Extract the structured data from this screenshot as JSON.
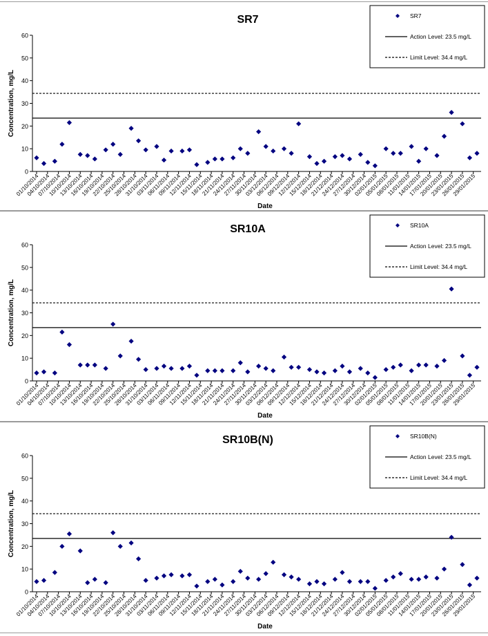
{
  "chart_data": [
    {
      "type": "scatter",
      "title": "SR7",
      "xlabel": "Date",
      "ylabel": "Concentration, mg/L",
      "ylim": [
        0,
        60
      ],
      "yticks": [
        "0",
        "10",
        "20",
        "30",
        "40",
        "50",
        "60"
      ],
      "grid": false,
      "legend_position": "top-right",
      "tick_dates": [
        "01/10/2014",
        "04/10/2014",
        "07/10/2014",
        "10/10/2014",
        "13/10/2014",
        "16/10/2014",
        "19/10/2014",
        "22/10/2014",
        "25/10/2014",
        "28/10/2014",
        "31/10/2014",
        "03/11/2014",
        "06/11/2014",
        "09/11/2014",
        "12/11/2014",
        "15/11/2014",
        "18/11/2014",
        "21/11/2014",
        "24/11/2014",
        "27/11/2014",
        "30/11/2014",
        "03/12/2014",
        "06/12/2014",
        "09/12/2014",
        "12/12/2014",
        "15/12/2014",
        "18/12/2014",
        "21/12/2014",
        "24/12/2014",
        "27/12/2014",
        "30/12/2014",
        "02/01/2015",
        "05/01/2015",
        "08/01/2015",
        "11/01/2015",
        "14/01/2015",
        "17/01/2015",
        "20/01/2015",
        "23/01/2015",
        "26/01/2015",
        "29/01/2015"
      ],
      "series": [
        {
          "name": "SR7",
          "color": "#000080",
          "marker": "diamond",
          "x": [
            "01/10/2014",
            "03/10/2014",
            "06/10/2014",
            "08/10/2014",
            "10/10/2014",
            "13/10/2014",
            "15/10/2014",
            "17/10/2014",
            "20/10/2014",
            "22/10/2014",
            "24/10/2014",
            "27/10/2014",
            "29/10/2014",
            "31/10/2014",
            "03/11/2014",
            "05/11/2014",
            "07/11/2014",
            "10/11/2014",
            "12/11/2014",
            "14/11/2014",
            "17/11/2014",
            "19/11/2014",
            "21/11/2014",
            "24/11/2014",
            "26/11/2014",
            "28/11/2014",
            "01/12/2014",
            "03/12/2014",
            "05/12/2014",
            "08/12/2014",
            "10/12/2014",
            "12/12/2014",
            "15/12/2014",
            "17/12/2014",
            "19/12/2014",
            "22/12/2014",
            "24/12/2014",
            "26/12/2014",
            "29/12/2014",
            "31/12/2014",
            "02/01/2015",
            "05/01/2015",
            "07/01/2015",
            "09/01/2015",
            "12/01/2015",
            "14/01/2015",
            "16/01/2015",
            "19/01/2015",
            "21/01/2015",
            "23/01/2015",
            "26/01/2015",
            "28/01/2015",
            "30/01/2015"
          ],
          "y": [
            6,
            3.5,
            4.5,
            12,
            21.5,
            7.5,
            7,
            5.5,
            9.5,
            12,
            7.5,
            19,
            13.5,
            9.5,
            11,
            5,
            9,
            9,
            9.5,
            3,
            4,
            5.5,
            5.5,
            6,
            10,
            8,
            17.5,
            11,
            9,
            10,
            8,
            21,
            6.5,
            3.5,
            4.5,
            6.5,
            7,
            5.5,
            7.5,
            4,
            2.5,
            10,
            8,
            8,
            11,
            4.5,
            10,
            7,
            15.5,
            26,
            21,
            6,
            8
          ]
        }
      ],
      "reference_lines": [
        {
          "name": "Action Level: 23.5 mg/L",
          "value": 23.5,
          "style": "solid"
        },
        {
          "name": "Limit Level: 34.4 mg/L",
          "value": 34.4,
          "style": "dashed"
        }
      ]
    },
    {
      "type": "scatter",
      "title": "SR10A",
      "xlabel": "Date",
      "ylabel": "Concentration, mg/L",
      "ylim": [
        0,
        60
      ],
      "yticks": [
        "0",
        "10",
        "20",
        "30",
        "40",
        "50",
        "60"
      ],
      "grid": false,
      "legend_position": "top-right",
      "tick_dates": [
        "01/10/2014",
        "04/10/2014",
        "07/10/2014",
        "10/10/2014",
        "13/10/2014",
        "16/10/2014",
        "19/10/2014",
        "22/10/2014",
        "25/10/2014",
        "28/10/2014",
        "31/10/2014",
        "03/11/2014",
        "06/11/2014",
        "09/11/2014",
        "12/11/2014",
        "15/11/2014",
        "18/11/2014",
        "21/11/2014",
        "24/11/2014",
        "27/11/2014",
        "30/11/2014",
        "03/12/2014",
        "06/12/2014",
        "09/12/2014",
        "12/12/2014",
        "15/12/2014",
        "18/12/2014",
        "21/12/2014",
        "24/12/2014",
        "27/12/2014",
        "30/12/2014",
        "02/01/2015",
        "05/01/2015",
        "08/01/2015",
        "11/01/2015",
        "14/01/2015",
        "17/01/2015",
        "20/01/2015",
        "23/01/2015",
        "26/01/2015",
        "29/01/2015"
      ],
      "series": [
        {
          "name": "SR10A",
          "color": "#000080",
          "marker": "diamond",
          "x": [
            "01/10/2014",
            "03/10/2014",
            "06/10/2014",
            "08/10/2014",
            "10/10/2014",
            "13/10/2014",
            "15/10/2014",
            "17/10/2014",
            "20/10/2014",
            "22/10/2014",
            "24/10/2014",
            "27/10/2014",
            "29/10/2014",
            "31/10/2014",
            "03/11/2014",
            "05/11/2014",
            "07/11/2014",
            "10/11/2014",
            "12/11/2014",
            "14/11/2014",
            "17/11/2014",
            "19/11/2014",
            "21/11/2014",
            "24/11/2014",
            "26/11/2014",
            "28/11/2014",
            "01/12/2014",
            "03/12/2014",
            "05/12/2014",
            "08/12/2014",
            "10/12/2014",
            "12/12/2014",
            "15/12/2014",
            "17/12/2014",
            "19/12/2014",
            "22/12/2014",
            "24/12/2014",
            "26/12/2014",
            "29/12/2014",
            "31/12/2014",
            "02/01/2015",
            "05/01/2015",
            "07/01/2015",
            "09/01/2015",
            "12/01/2015",
            "14/01/2015",
            "16/01/2015",
            "19/01/2015",
            "21/01/2015",
            "23/01/2015",
            "26/01/2015",
            "28/01/2015",
            "30/01/2015"
          ],
          "y": [
            3.5,
            4,
            3.5,
            21.5,
            16,
            7,
            7,
            7,
            5.5,
            25,
            11,
            17.5,
            9.5,
            5,
            5.5,
            6.5,
            5.5,
            5.5,
            6.5,
            2.5,
            4.5,
            4.5,
            4.5,
            4.5,
            8,
            4,
            6.5,
            5.5,
            4.5,
            10.5,
            6,
            6,
            5,
            4,
            3.5,
            4.5,
            6.5,
            4,
            5.5,
            3.5,
            1.5,
            5,
            6,
            7,
            4.5,
            7,
            7,
            6.5,
            9,
            40.5,
            11,
            2.5,
            6
          ]
        }
      ],
      "reference_lines": [
        {
          "name": "Action Level: 23.5 mg/L",
          "value": 23.5,
          "style": "solid"
        },
        {
          "name": "Limit Level: 34.4 mg/L",
          "value": 34.4,
          "style": "dashed"
        }
      ]
    },
    {
      "type": "scatter",
      "title": "SR10B(N)",
      "xlabel": "Date",
      "ylabel": "Concentration, mg/L",
      "ylim": [
        0,
        60
      ],
      "yticks": [
        "0",
        "10",
        "20",
        "30",
        "40",
        "50",
        "60"
      ],
      "grid": false,
      "legend_position": "top-right",
      "tick_dates": [
        "01/10/2014",
        "04/10/2014",
        "07/10/2014",
        "10/10/2014",
        "13/10/2014",
        "16/10/2014",
        "19/10/2014",
        "22/10/2014",
        "25/10/2014",
        "28/10/2014",
        "31/10/2014",
        "03/11/2014",
        "06/11/2014",
        "09/11/2014",
        "12/11/2014",
        "15/11/2014",
        "18/11/2014",
        "21/11/2014",
        "24/11/2014",
        "27/11/2014",
        "30/11/2014",
        "03/12/2014",
        "06/12/2014",
        "09/12/2014",
        "12/12/2014",
        "15/12/2014",
        "18/12/2014",
        "21/12/2014",
        "24/12/2014",
        "27/12/2014",
        "30/12/2014",
        "02/01/2015",
        "05/01/2015",
        "08/01/2015",
        "11/01/2015",
        "14/01/2015",
        "17/01/2015",
        "20/01/2015",
        "23/01/2015",
        "26/01/2015",
        "29/01/2015"
      ],
      "series": [
        {
          "name": "SR10B(N)",
          "color": "#000080",
          "marker": "diamond",
          "x": [
            "01/10/2014",
            "03/10/2014",
            "06/10/2014",
            "08/10/2014",
            "10/10/2014",
            "13/10/2014",
            "15/10/2014",
            "17/10/2014",
            "20/10/2014",
            "22/10/2014",
            "24/10/2014",
            "27/10/2014",
            "29/10/2014",
            "31/10/2014",
            "03/11/2014",
            "05/11/2014",
            "07/11/2014",
            "10/11/2014",
            "12/11/2014",
            "14/11/2014",
            "17/11/2014",
            "19/11/2014",
            "21/11/2014",
            "24/11/2014",
            "26/11/2014",
            "28/11/2014",
            "01/12/2014",
            "03/12/2014",
            "05/12/2014",
            "08/12/2014",
            "10/12/2014",
            "12/12/2014",
            "15/12/2014",
            "17/12/2014",
            "19/12/2014",
            "22/12/2014",
            "24/12/2014",
            "26/12/2014",
            "29/12/2014",
            "31/12/2014",
            "02/01/2015",
            "05/01/2015",
            "07/01/2015",
            "09/01/2015",
            "12/01/2015",
            "14/01/2015",
            "16/01/2015",
            "19/01/2015",
            "21/01/2015",
            "23/01/2015",
            "26/01/2015",
            "28/01/2015",
            "30/01/2015"
          ],
          "y": [
            4.5,
            5,
            8.5,
            20,
            25.5,
            18,
            4,
            5.5,
            4,
            26,
            20,
            21.5,
            14.5,
            5,
            6,
            7,
            7.5,
            7,
            7.5,
            2.5,
            4.5,
            5.5,
            3,
            4.5,
            9,
            6,
            5.5,
            8,
            13,
            7.5,
            6.5,
            5.5,
            3.5,
            4.5,
            3.5,
            5.5,
            8.5,
            4.5,
            4.5,
            4.5,
            1.5,
            5,
            6.5,
            8,
            5.5,
            5.5,
            6.5,
            6,
            10,
            24,
            12,
            3,
            6
          ]
        }
      ],
      "reference_lines": [
        {
          "name": "Action Level: 23.5 mg/L",
          "value": 23.5,
          "style": "solid"
        },
        {
          "name": "Limit Level: 34.4 mg/L",
          "value": 34.4,
          "style": "dashed"
        }
      ]
    }
  ]
}
